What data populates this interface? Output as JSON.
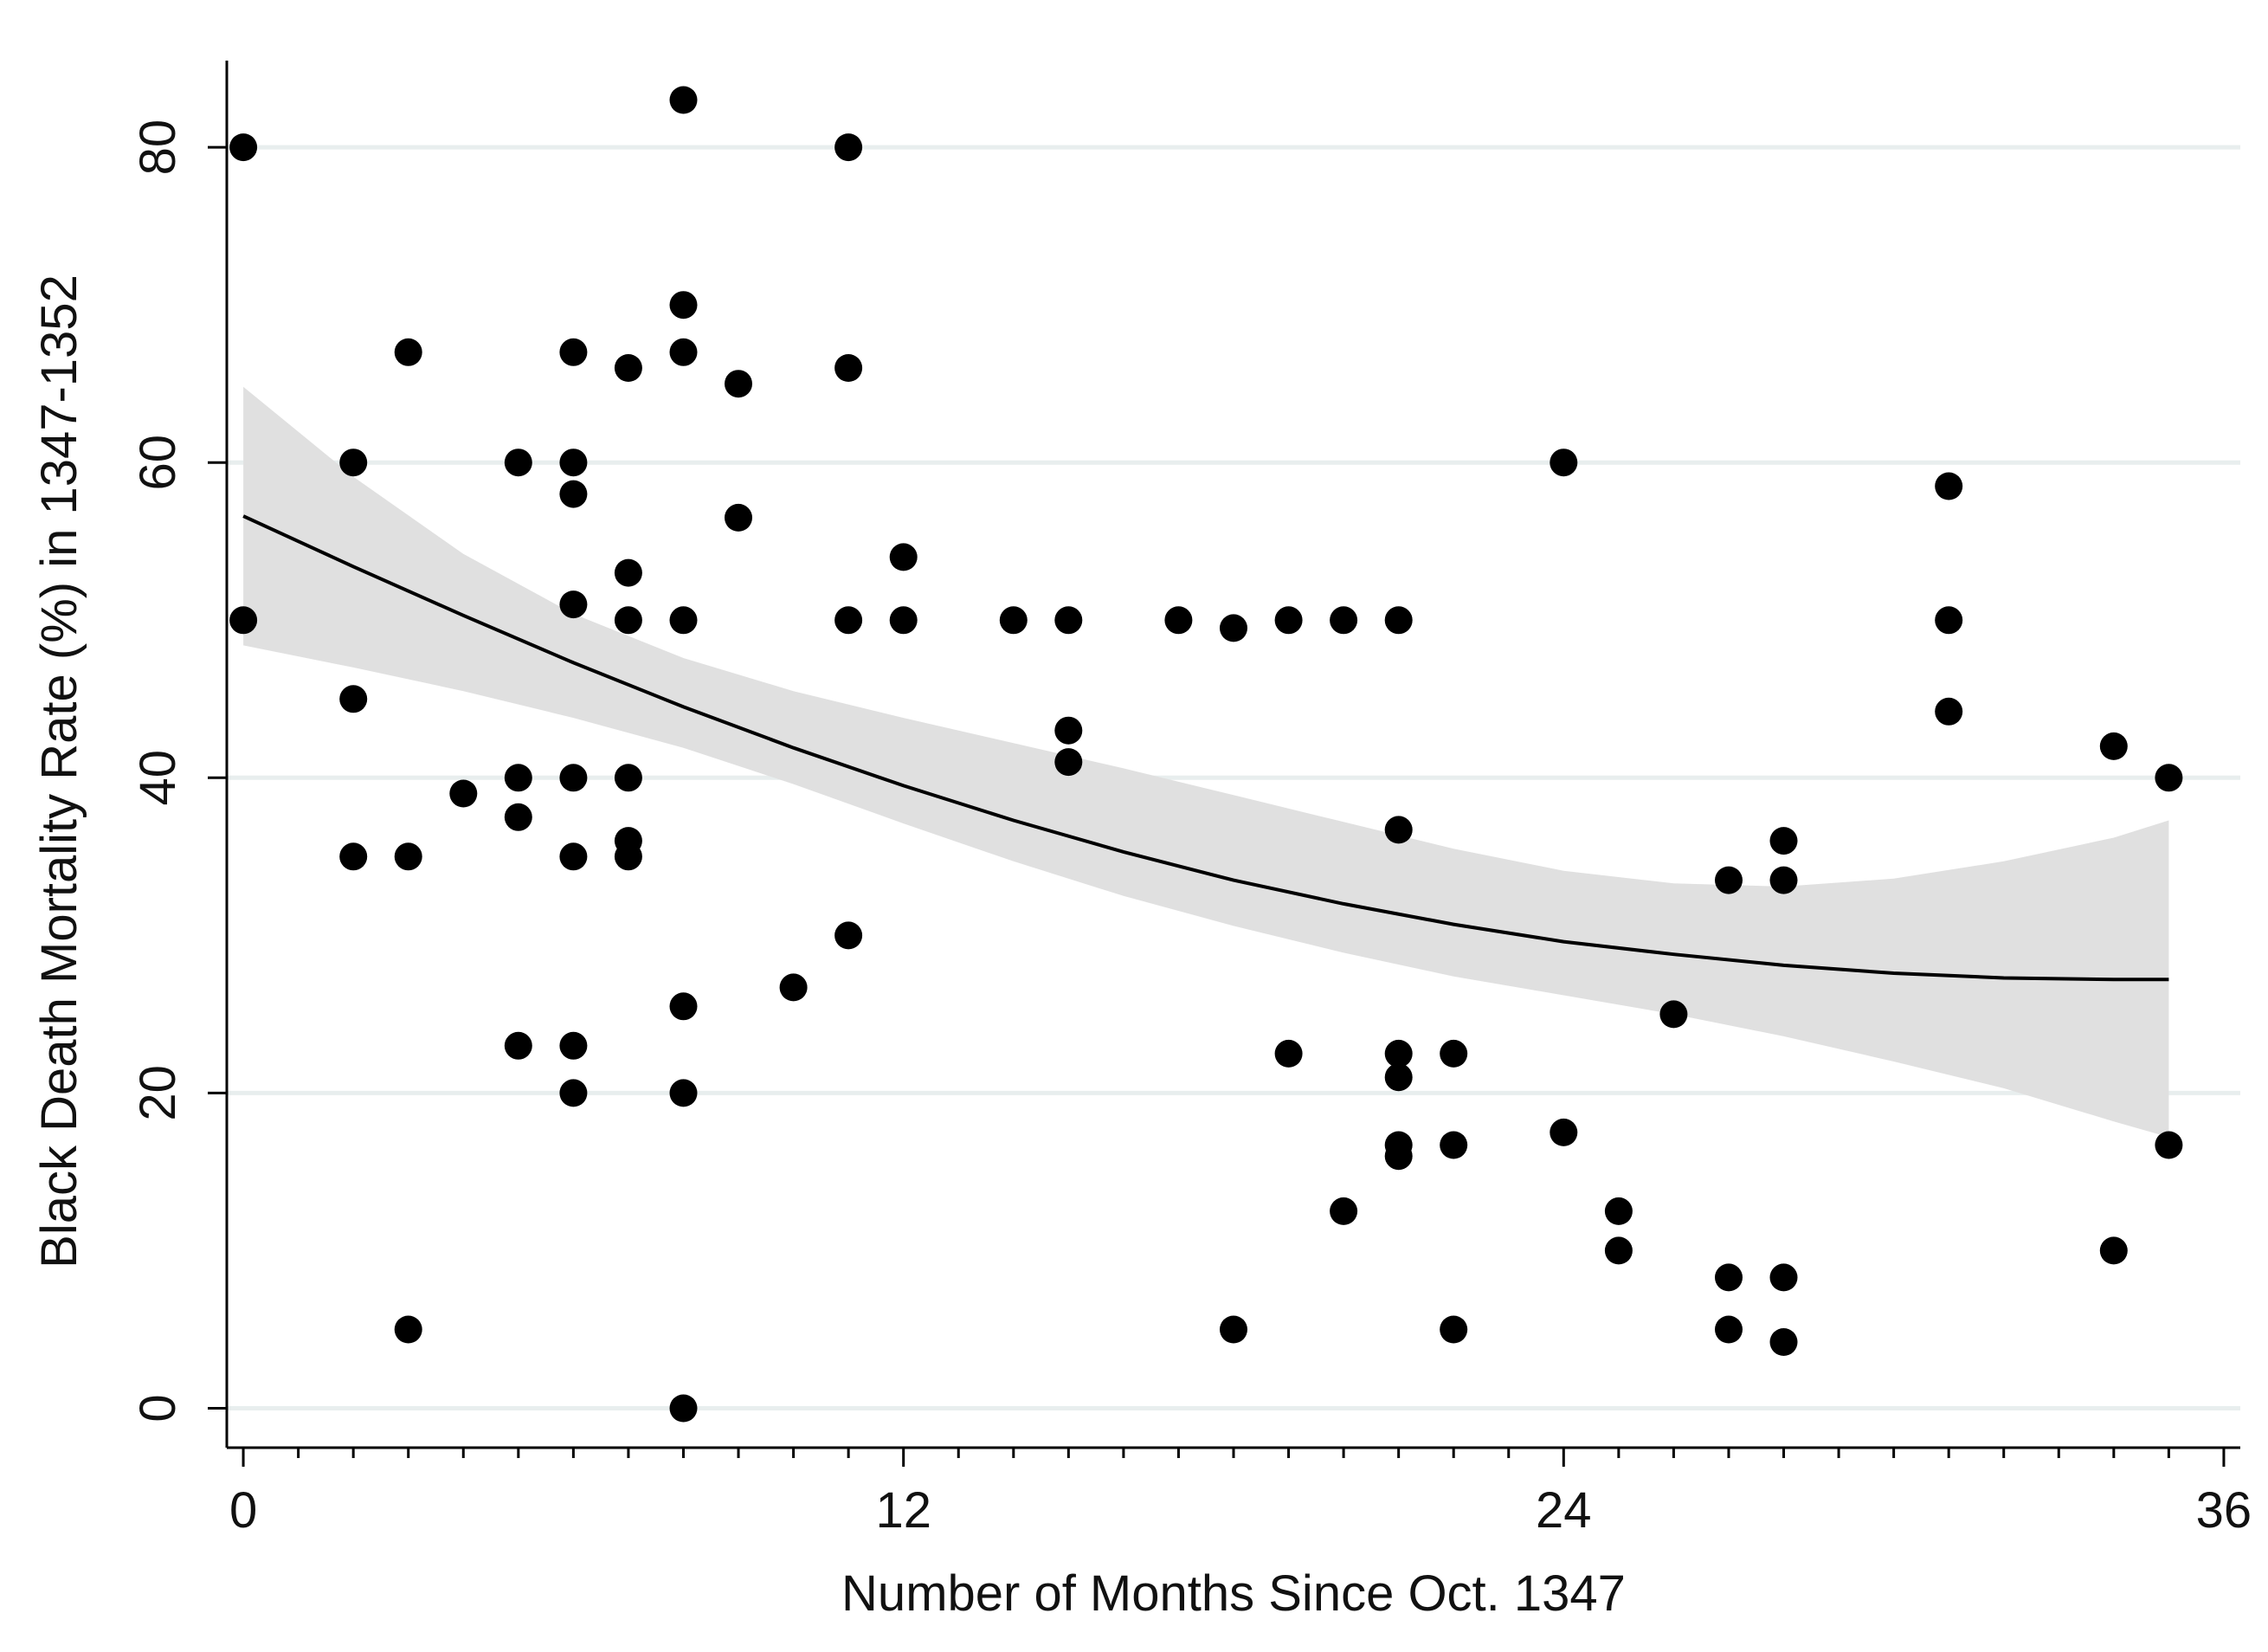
{
  "chart_data": {
    "type": "scatter",
    "title": "",
    "xlabel": "Number of Months Since Oct. 1347",
    "ylabel": "Black Death Mortality Rate (%) in 1347-1352",
    "xlim": [
      -0.3,
      36.3
    ],
    "ylim": [
      -2.5,
      85.5
    ],
    "x_major_ticks": [
      0,
      12,
      24,
      36
    ],
    "x_minor_tick_step": 1,
    "y_ticks": [
      0,
      20,
      40,
      60,
      80
    ],
    "x_tick_labels": [
      "0",
      "12",
      "24",
      "36"
    ],
    "y_tick_labels": [
      "0",
      "20",
      "40",
      "60",
      "80"
    ],
    "grid": "horizontal",
    "colors": {
      "points": "#000000",
      "fit_line": "#000000",
      "confidence_band": "#e0e0e0",
      "gridline": "#e8eeee",
      "axis": "#000000"
    },
    "series": [
      {
        "kind": "points",
        "points": [
          [
            0,
            80
          ],
          [
            0,
            50
          ],
          [
            2,
            60
          ],
          [
            2,
            45
          ],
          [
            2,
            35
          ],
          [
            3,
            67
          ],
          [
            3,
            35
          ],
          [
            3,
            5
          ],
          [
            4,
            39
          ],
          [
            5,
            60
          ],
          [
            5,
            40
          ],
          [
            5,
            37.5
          ],
          [
            5,
            23
          ],
          [
            6,
            67
          ],
          [
            6,
            60
          ],
          [
            6,
            58
          ],
          [
            6,
            51
          ],
          [
            6,
            40
          ],
          [
            6,
            35
          ],
          [
            6,
            23
          ],
          [
            6,
            20
          ],
          [
            7,
            66
          ],
          [
            7,
            53
          ],
          [
            7,
            50
          ],
          [
            7,
            40
          ],
          [
            7,
            36
          ],
          [
            7,
            35
          ],
          [
            8,
            83
          ],
          [
            8,
            70
          ],
          [
            8,
            67
          ],
          [
            8,
            50
          ],
          [
            8,
            25.5
          ],
          [
            8,
            20
          ],
          [
            8,
            0
          ],
          [
            9,
            65
          ],
          [
            9,
            56.5
          ],
          [
            10,
            26.7
          ],
          [
            11,
            80
          ],
          [
            11,
            66
          ],
          [
            11,
            50
          ],
          [
            11,
            30
          ],
          [
            12,
            54
          ],
          [
            12,
            50
          ],
          [
            14,
            50
          ],
          [
            15,
            50
          ],
          [
            15,
            43
          ],
          [
            15,
            41
          ],
          [
            17,
            50
          ],
          [
            18,
            49.5
          ],
          [
            18,
            5
          ],
          [
            19,
            50
          ],
          [
            19,
            22.5
          ],
          [
            20,
            50
          ],
          [
            20,
            12.5
          ],
          [
            21,
            50
          ],
          [
            21,
            36.7
          ],
          [
            21,
            22.5
          ],
          [
            21,
            21
          ],
          [
            21,
            16.7
          ],
          [
            21,
            16
          ],
          [
            22,
            22.5
          ],
          [
            22,
            16.7
          ],
          [
            22,
            5
          ],
          [
            24,
            60
          ],
          [
            24,
            17.5
          ],
          [
            25,
            12.5
          ],
          [
            25,
            10
          ],
          [
            26,
            25
          ],
          [
            27,
            33.5
          ],
          [
            27,
            8.3
          ],
          [
            27,
            5
          ],
          [
            28,
            36
          ],
          [
            28,
            33.5
          ],
          [
            28,
            8.3
          ],
          [
            28,
            4.2
          ],
          [
            31,
            58.5
          ],
          [
            31,
            50
          ],
          [
            31,
            44.2
          ],
          [
            34,
            42
          ],
          [
            34,
            10
          ],
          [
            35,
            40
          ],
          [
            35,
            16.7
          ]
        ]
      },
      {
        "kind": "fit",
        "x": [
          0,
          2,
          4,
          6,
          8,
          10,
          12,
          14,
          16,
          18,
          20,
          22,
          24,
          26,
          28,
          30,
          32,
          34,
          35
        ],
        "y": [
          56.6,
          53.4,
          50.3,
          47.3,
          44.5,
          41.9,
          39.5,
          37.3,
          35.3,
          33.5,
          32.0,
          30.7,
          29.6,
          28.8,
          28.1,
          27.6,
          27.3,
          27.2,
          27.2
        ],
        "ci_upper": [
          64.8,
          59.1,
          54.2,
          50.4,
          47.6,
          45.5,
          43.8,
          42.2,
          40.6,
          38.9,
          37.2,
          35.5,
          34.1,
          33.3,
          33.1,
          33.6,
          34.7,
          36.2,
          37.3
        ],
        "ci_lower": [
          48.4,
          47.0,
          45.5,
          43.8,
          41.9,
          39.6,
          37.1,
          34.7,
          32.5,
          30.6,
          28.9,
          27.4,
          26.2,
          25.0,
          23.6,
          22.0,
          20.3,
          18.2,
          17.2
        ]
      }
    ]
  }
}
